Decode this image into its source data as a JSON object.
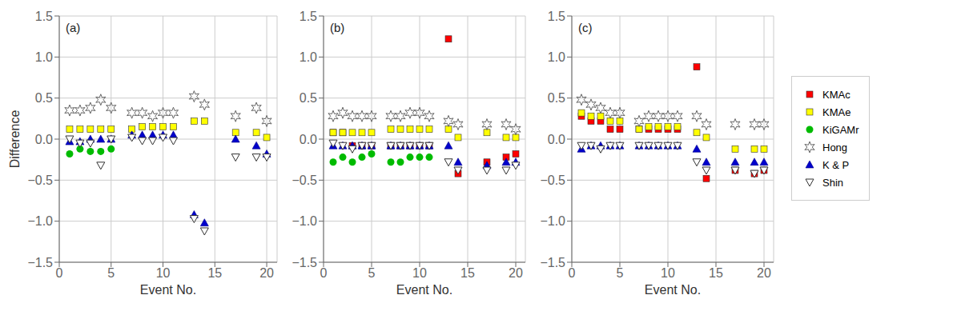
{
  "chart_data": [
    {
      "type": "scatter",
      "xlabel": "Event No.",
      "ylabel": "Difference",
      "annotations": [
        "(a)"
      ],
      "x": [
        0,
        1,
        2,
        3,
        4,
        5,
        6,
        7,
        8,
        9,
        10,
        11,
        12,
        13,
        14,
        15,
        16,
        17,
        18,
        19,
        20
      ],
      "xlim": [
        0,
        21
      ],
      "xticks": [
        0,
        5,
        10,
        15,
        20
      ],
      "ylim": [
        -1.5,
        1.5
      ],
      "yticks": [
        {
          "value": -1.5,
          "label": "−1.5"
        },
        {
          "value": -1.0,
          "label": "−1.0"
        },
        {
          "value": -0.5,
          "label": "−0.5"
        },
        {
          "value": 0.0,
          "label": "0.0"
        },
        {
          "value": 0.5,
          "label": "0.5"
        },
        {
          "value": 1.0,
          "label": "1.0"
        },
        {
          "value": 1.5,
          "label": "1.5"
        }
      ],
      "grid": true,
      "series": [
        {
          "name": "KMAc",
          "color": "#FF0000",
          "marker": "square",
          "values": [
            null,
            null,
            null,
            null,
            null,
            null,
            null,
            null,
            null,
            null,
            null,
            null,
            null,
            null,
            null,
            null,
            null,
            null,
            null,
            null,
            null
          ]
        },
        {
          "name": "KMAe",
          "color": "#FFFF00",
          "marker": "square",
          "values": [
            null,
            0.12,
            0.12,
            0.12,
            0.12,
            0.12,
            null,
            0.12,
            0.15,
            0.15,
            0.15,
            0.15,
            null,
            0.22,
            0.22,
            null,
            null,
            0.08,
            null,
            0.08,
            0.02
          ]
        },
        {
          "name": "KiGAMr",
          "color": "#00BB00",
          "marker": "circle",
          "values": [
            null,
            -0.18,
            -0.12,
            -0.15,
            -0.15,
            -0.12,
            null,
            null,
            null,
            null,
            null,
            null,
            null,
            null,
            null,
            null,
            null,
            null,
            null,
            null,
            null
          ]
        },
        {
          "name": "Hong",
          "color": "#666666",
          "marker": "star",
          "values": [
            null,
            0.35,
            0.35,
            0.38,
            0.48,
            0.38,
            null,
            0.32,
            0.32,
            0.28,
            0.32,
            0.32,
            null,
            0.52,
            0.42,
            null,
            null,
            0.28,
            null,
            0.38,
            0.22
          ]
        },
        {
          "name": "K & P",
          "color": "#0000CC",
          "marker": "triangle",
          "values": [
            null,
            -0.03,
            -0.03,
            0.0,
            0.0,
            0.0,
            null,
            0.05,
            0.05,
            0.05,
            0.05,
            0.05,
            null,
            -0.92,
            -1.02,
            null,
            null,
            0.0,
            null,
            -0.08,
            -0.18
          ]
        },
        {
          "name": "Shin",
          "color": "#333333",
          "marker": "triangle_down",
          "values": [
            null,
            0.0,
            -0.05,
            -0.05,
            -0.32,
            0.0,
            null,
            0.02,
            -0.02,
            -0.02,
            0.02,
            -0.02,
            null,
            -0.97,
            -1.12,
            null,
            null,
            -0.22,
            null,
            -0.22,
            -0.22
          ]
        }
      ]
    },
    {
      "type": "scatter",
      "xlabel": "Event No.",
      "annotations": [
        "(b)"
      ],
      "x": [
        0,
        1,
        2,
        3,
        4,
        5,
        6,
        7,
        8,
        9,
        10,
        11,
        12,
        13,
        14,
        15,
        16,
        17,
        18,
        19,
        20
      ],
      "xlim": [
        0,
        21
      ],
      "xticks": [
        0,
        5,
        10,
        15,
        20
      ],
      "ylim": [
        -1.5,
        1.5
      ],
      "yticks": [
        {
          "value": -1.5,
          "label": "−1.5"
        },
        {
          "value": -1.0,
          "label": "−1.0"
        },
        {
          "value": -0.5,
          "label": "−0.5"
        },
        {
          "value": 0.0,
          "label": "0.0"
        },
        {
          "value": 0.5,
          "label": "0.5"
        },
        {
          "value": 1.0,
          "label": "1.0"
        },
        {
          "value": 1.5,
          "label": "1.5"
        }
      ],
      "grid": true,
      "series": [
        {
          "name": "KMAc",
          "color": "#FF0000",
          "marker": "square",
          "values": [
            null,
            0.08,
            0.08,
            -0.08,
            -0.08,
            -0.08,
            null,
            -0.08,
            -0.08,
            -0.08,
            -0.08,
            -0.08,
            null,
            1.22,
            -0.42,
            null,
            null,
            -0.28,
            null,
            -0.22,
            -0.18
          ]
        },
        {
          "name": "KMAe",
          "color": "#FFFF00",
          "marker": "square",
          "values": [
            null,
            0.08,
            0.08,
            0.08,
            0.08,
            0.08,
            null,
            0.12,
            0.12,
            0.12,
            0.12,
            0.12,
            null,
            0.12,
            0.02,
            null,
            null,
            0.08,
            null,
            0.02,
            0.02
          ]
        },
        {
          "name": "KiGAMr",
          "color": "#00BB00",
          "marker": "circle",
          "values": [
            null,
            -0.28,
            -0.22,
            -0.28,
            -0.22,
            -0.18,
            null,
            -0.28,
            -0.28,
            -0.22,
            -0.22,
            -0.22,
            null,
            null,
            null,
            null,
            null,
            null,
            null,
            null,
            null
          ]
        },
        {
          "name": "Hong",
          "color": "#666666",
          "marker": "star",
          "values": [
            null,
            0.28,
            0.32,
            0.28,
            0.28,
            0.28,
            null,
            0.28,
            0.28,
            0.32,
            0.32,
            0.28,
            null,
            0.22,
            0.18,
            null,
            null,
            0.18,
            null,
            0.18,
            0.12
          ]
        },
        {
          "name": "K & P",
          "color": "#0000CC",
          "marker": "triangle",
          "values": [
            null,
            -0.08,
            -0.08,
            -0.08,
            -0.08,
            -0.08,
            null,
            -0.08,
            -0.08,
            -0.08,
            -0.08,
            -0.08,
            null,
            -0.08,
            -0.28,
            null,
            null,
            -0.32,
            null,
            -0.28,
            -0.28
          ]
        },
        {
          "name": "Shin",
          "color": "#333333",
          "marker": "triangle_down",
          "values": [
            null,
            -0.05,
            -0.08,
            -0.12,
            -0.08,
            -0.08,
            null,
            -0.08,
            -0.08,
            -0.08,
            -0.08,
            -0.08,
            null,
            -0.28,
            -0.38,
            null,
            null,
            -0.38,
            null,
            -0.38,
            -0.32
          ]
        }
      ]
    },
    {
      "type": "scatter",
      "xlabel": "Event No.",
      "annotations": [
        "(c)"
      ],
      "legend": "right",
      "x": [
        0,
        1,
        2,
        3,
        4,
        5,
        6,
        7,
        8,
        9,
        10,
        11,
        12,
        13,
        14,
        15,
        16,
        17,
        18,
        19,
        20
      ],
      "xlim": [
        0,
        21
      ],
      "xticks": [
        0,
        5,
        10,
        15,
        20
      ],
      "ylim": [
        -1.5,
        1.5
      ],
      "yticks": [
        {
          "value": -1.5,
          "label": "−1.5"
        },
        {
          "value": -1.0,
          "label": "−1.0"
        },
        {
          "value": -0.5,
          "label": "−0.5"
        },
        {
          "value": 0.0,
          "label": "0.0"
        },
        {
          "value": 0.5,
          "label": "0.5"
        },
        {
          "value": 1.0,
          "label": "1.0"
        },
        {
          "value": 1.5,
          "label": "1.5"
        }
      ],
      "grid": true,
      "series": [
        {
          "name": "KMAc",
          "color": "#FF0000",
          "marker": "square",
          "values": [
            null,
            0.28,
            0.22,
            0.22,
            0.12,
            0.12,
            null,
            0.12,
            0.12,
            0.12,
            0.12,
            0.12,
            null,
            0.88,
            -0.48,
            null,
            null,
            -0.38,
            null,
            -0.42,
            -0.38
          ]
        },
        {
          "name": "KMAe",
          "color": "#FFFF00",
          "marker": "square",
          "values": [
            null,
            0.32,
            0.28,
            0.28,
            0.22,
            0.22,
            null,
            0.12,
            0.15,
            0.15,
            0.15,
            0.15,
            null,
            0.08,
            0.02,
            null,
            null,
            -0.12,
            null,
            -0.12,
            -0.12
          ]
        },
        {
          "name": "KiGAMr",
          "color": "#00BB00",
          "marker": "circle",
          "values": [
            null,
            null,
            null,
            null,
            null,
            null,
            null,
            null,
            null,
            null,
            null,
            null,
            null,
            null,
            null,
            null,
            null,
            null,
            null,
            null,
            null
          ]
        },
        {
          "name": "Hong",
          "color": "#666666",
          "marker": "star",
          "values": [
            null,
            0.48,
            0.42,
            0.38,
            0.32,
            0.32,
            null,
            0.22,
            0.28,
            0.28,
            0.28,
            0.28,
            null,
            0.28,
            0.18,
            null,
            null,
            0.18,
            null,
            0.18,
            0.18
          ]
        },
        {
          "name": "K & P",
          "color": "#0000CC",
          "marker": "triangle",
          "values": [
            null,
            -0.12,
            -0.08,
            -0.08,
            -0.08,
            -0.08,
            null,
            -0.08,
            -0.08,
            -0.08,
            -0.08,
            -0.08,
            null,
            -0.12,
            -0.28,
            null,
            null,
            -0.28,
            null,
            -0.28,
            -0.28
          ]
        },
        {
          "name": "Shin",
          "color": "#333333",
          "marker": "triangle_down",
          "values": [
            null,
            -0.08,
            -0.08,
            -0.12,
            -0.08,
            -0.08,
            null,
            -0.08,
            -0.08,
            -0.08,
            -0.08,
            -0.08,
            null,
            -0.28,
            -0.38,
            null,
            null,
            -0.38,
            null,
            -0.42,
            -0.38
          ]
        }
      ]
    }
  ]
}
